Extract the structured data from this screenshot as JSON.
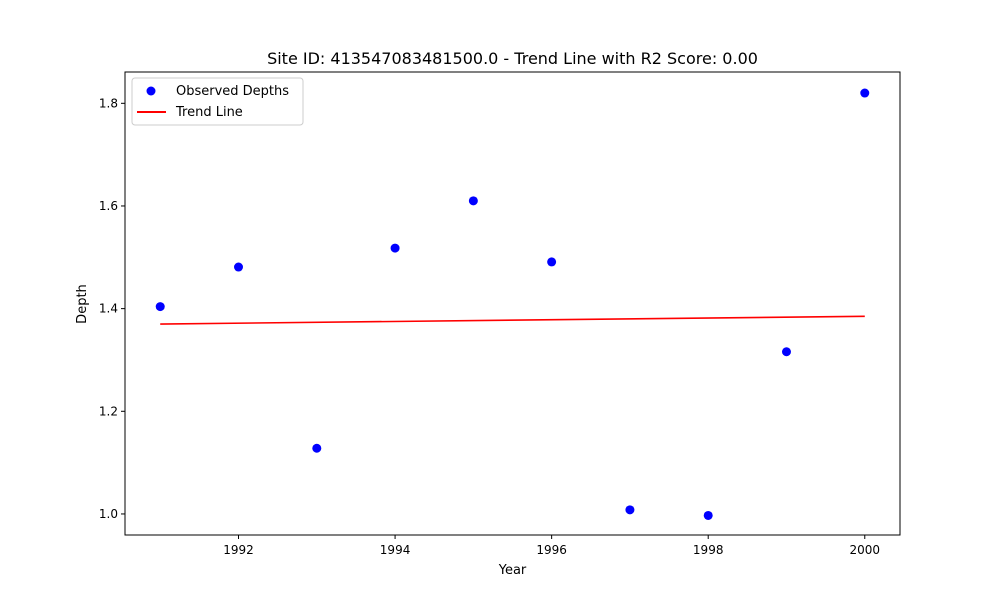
{
  "chart_data": {
    "type": "scatter",
    "title": "Site ID: 413547083481500.0 - Trend Line with R2 Score: 0.00",
    "xlabel": "Year",
    "ylabel": "Depth",
    "xlim": [
      1990.55,
      2000.45
    ],
    "ylim": [
      0.959,
      1.861
    ],
    "xticks": [
      1992,
      1994,
      1996,
      1998,
      2000
    ],
    "xtick_labels": [
      "1992",
      "1994",
      "1996",
      "1998",
      "2000"
    ],
    "yticks": [
      1.0,
      1.2,
      1.4,
      1.6,
      1.8
    ],
    "ytick_labels": [
      "1.0",
      "1.2",
      "1.4",
      "1.6",
      "1.8"
    ],
    "grid": false,
    "legend_position": "top-left",
    "series": [
      {
        "name": "Observed Depths",
        "kind": "scatter",
        "color": "#0000ff",
        "x": [
          1991,
          1992,
          1993,
          1994,
          1995,
          1996,
          1997,
          1998,
          1999,
          2000
        ],
        "y": [
          1.404,
          1.481,
          1.128,
          1.518,
          1.61,
          1.491,
          1.008,
          0.997,
          1.316,
          1.82
        ]
      },
      {
        "name": "Trend Line",
        "kind": "line",
        "color": "#ff0000",
        "x": [
          1991,
          2000
        ],
        "y": [
          1.37,
          1.385
        ]
      }
    ]
  }
}
